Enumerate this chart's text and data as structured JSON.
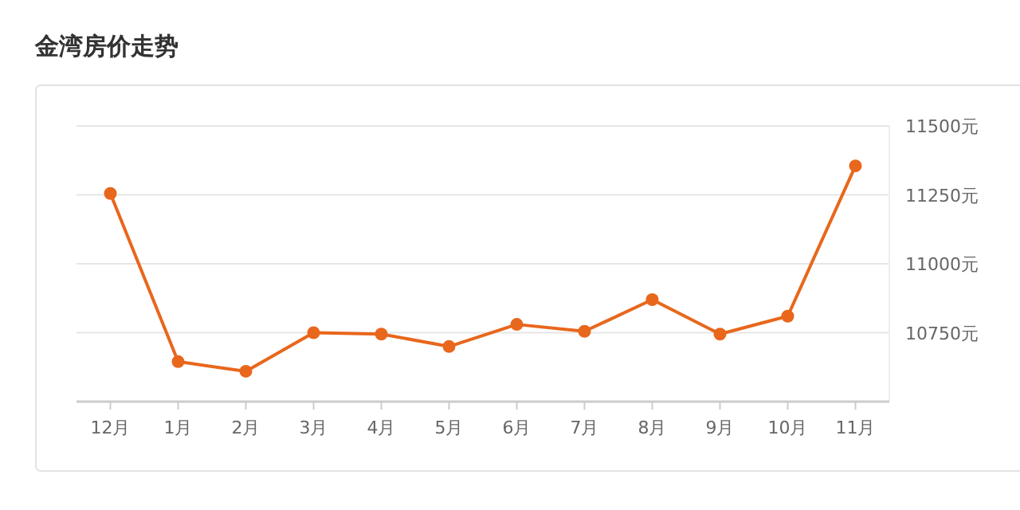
{
  "chart_data": {
    "type": "line",
    "title": "金湾房价走势",
    "categories": [
      "12月",
      "1月",
      "2月",
      "3月",
      "4月",
      "5月",
      "6月",
      "7月",
      "8月",
      "9月",
      "10月",
      "11月"
    ],
    "series": [
      {
        "color": "#e8671c",
        "values": [
          11255,
          10645,
          10610,
          10750,
          10745,
          10700,
          10780,
          10755,
          10870,
          10745,
          10810,
          11355
        ]
      }
    ],
    "ylim": [
      10500,
      11500
    ],
    "yticks": [
      {
        "value": 10750,
        "label": "10750元"
      },
      {
        "value": 11000,
        "label": "11000元"
      },
      {
        "value": 11250,
        "label": "11250元"
      },
      {
        "value": 11500,
        "label": "11500元"
      }
    ],
    "grid": "y",
    "marker": "circle",
    "line_style": "solid"
  }
}
